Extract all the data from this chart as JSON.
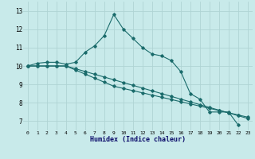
{
  "xlabel": "Humidex (Indice chaleur)",
  "bg_color": "#c8eaea",
  "grid_color": "#afd4d4",
  "line_color": "#1a6b6b",
  "x_ticks": [
    0,
    1,
    2,
    3,
    4,
    5,
    6,
    7,
    8,
    9,
    10,
    11,
    12,
    13,
    14,
    15,
    16,
    17,
    18,
    19,
    20,
    21,
    22,
    23
  ],
  "y_ticks": [
    7,
    8,
    9,
    10,
    11,
    12,
    13
  ],
  "xlim": [
    -0.5,
    23.5
  ],
  "ylim": [
    6.5,
    13.5
  ],
  "series1_x": [
    0,
    1,
    2,
    3,
    4,
    5,
    6,
    7,
    8,
    9,
    10,
    11,
    12,
    13,
    14,
    15,
    16,
    17,
    18,
    19,
    20,
    21,
    22
  ],
  "series1_y": [
    10.0,
    10.15,
    10.2,
    10.2,
    10.1,
    10.2,
    10.75,
    11.1,
    11.65,
    12.8,
    12.0,
    11.5,
    11.0,
    10.65,
    10.55,
    10.3,
    9.7,
    8.5,
    8.2,
    7.5,
    7.5,
    7.5,
    6.8
  ],
  "series2_x": [
    0,
    1,
    2,
    3,
    4,
    5,
    6,
    7,
    8,
    9,
    10,
    11,
    12,
    13,
    14,
    15,
    16,
    17,
    18,
    19,
    20,
    21,
    22,
    23
  ],
  "series2_y": [
    10.0,
    10.0,
    10.0,
    10.0,
    10.0,
    9.85,
    9.7,
    9.55,
    9.4,
    9.25,
    9.1,
    8.95,
    8.8,
    8.65,
    8.5,
    8.35,
    8.2,
    8.05,
    7.9,
    7.75,
    7.6,
    7.45,
    7.3,
    7.15
  ],
  "series3_x": [
    0,
    1,
    2,
    3,
    4,
    5,
    6,
    7,
    8,
    9,
    10,
    11,
    12,
    13,
    14,
    15,
    16,
    17,
    18,
    19,
    20,
    21,
    22,
    23
  ],
  "series3_y": [
    10.0,
    10.0,
    10.0,
    10.0,
    10.0,
    9.78,
    9.56,
    9.34,
    9.12,
    8.9,
    8.78,
    8.66,
    8.54,
    8.42,
    8.3,
    8.18,
    8.06,
    7.94,
    7.82,
    7.7,
    7.58,
    7.46,
    7.34,
    7.22
  ]
}
